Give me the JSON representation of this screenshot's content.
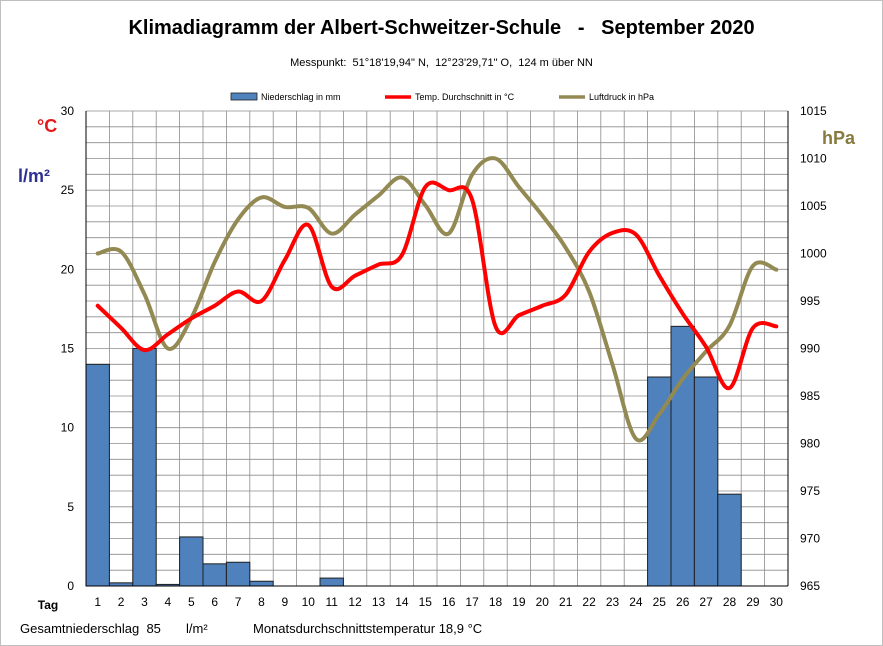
{
  "title": "Klimadiagramm der Albert-Schweitzer-Schule   -   September 2020",
  "subtitle": "Messpunkt:  51°18'19,94\" N,  12°23'29,71\" O,  124 m über NN",
  "units": {
    "celsius": "°C",
    "precip": "l/m²",
    "pressure": "hPa"
  },
  "x_axis_label": "Tag",
  "footer": {
    "total_label": "Gesamtniederschlag  85",
    "total_unit": "l/m²",
    "avg_temp_label": "Monatsdurchschnittstemperatur 18,9 °C"
  },
  "colors": {
    "precip": "#4f81bd",
    "temp": "#ff0000",
    "pressure": "#938953"
  },
  "chart_data": {
    "type": "bar",
    "categories": [
      "1",
      "2",
      "3",
      "4",
      "5",
      "6",
      "7",
      "8",
      "9",
      "10",
      "11",
      "12",
      "13",
      "14",
      "15",
      "16",
      "17",
      "18",
      "19",
      "20",
      "21",
      "22",
      "23",
      "24",
      "25",
      "26",
      "27",
      "28",
      "29",
      "30"
    ],
    "legend": [
      "Niederschlag in mm",
      "Temp. Durchschnitt in °C",
      "Luftdruck in hPa"
    ],
    "legend_position": "top",
    "grid": true,
    "y_left": {
      "min": 0,
      "max": 30,
      "ticks": [
        0,
        5,
        10,
        15,
        20,
        25,
        30
      ]
    },
    "y_right": {
      "min": 965,
      "max": 1015,
      "ticks": [
        965,
        970,
        975,
        980,
        985,
        990,
        995,
        1000,
        1005,
        1010,
        1015
      ]
    },
    "series": [
      {
        "name": "Niederschlag in mm",
        "type": "bar",
        "axis": "left",
        "values": [
          14.0,
          0.2,
          15.0,
          0.1,
          3.1,
          1.4,
          1.5,
          0.3,
          0,
          0,
          0.5,
          0,
          0,
          0,
          0,
          0,
          0,
          0,
          0,
          0,
          0,
          0,
          0,
          0,
          13.2,
          16.4,
          13.2,
          5.8,
          0,
          0
        ]
      },
      {
        "name": "Temp. Durchschnitt in °C",
        "type": "line",
        "axis": "left",
        "values": [
          17.7,
          16.3,
          14.9,
          15.9,
          16.9,
          17.7,
          18.6,
          18.0,
          20.6,
          22.8,
          18.9,
          19.6,
          20.3,
          20.9,
          25.2,
          25.0,
          24.4,
          16.4,
          17.1,
          17.7,
          18.4,
          21.1,
          22.3,
          22.2,
          19.6,
          17.2,
          15.1,
          12.5,
          16.3,
          16.4
        ]
      },
      {
        "name": "Luftdruck in hPa",
        "type": "line",
        "axis": "right",
        "values": [
          1000.0,
          1000.2,
          995.7,
          990.0,
          993.2,
          999.1,
          1003.6,
          1005.9,
          1004.9,
          1004.8,
          1002.1,
          1004.1,
          1006.1,
          1008.0,
          1005.1,
          1002.1,
          1008.3,
          1010.0,
          1007.0,
          1004.0,
          1000.6,
          996.0,
          988.3,
          980.5,
          983.1,
          986.8,
          989.7,
          992.4,
          998.7,
          998.3
        ]
      }
    ]
  }
}
